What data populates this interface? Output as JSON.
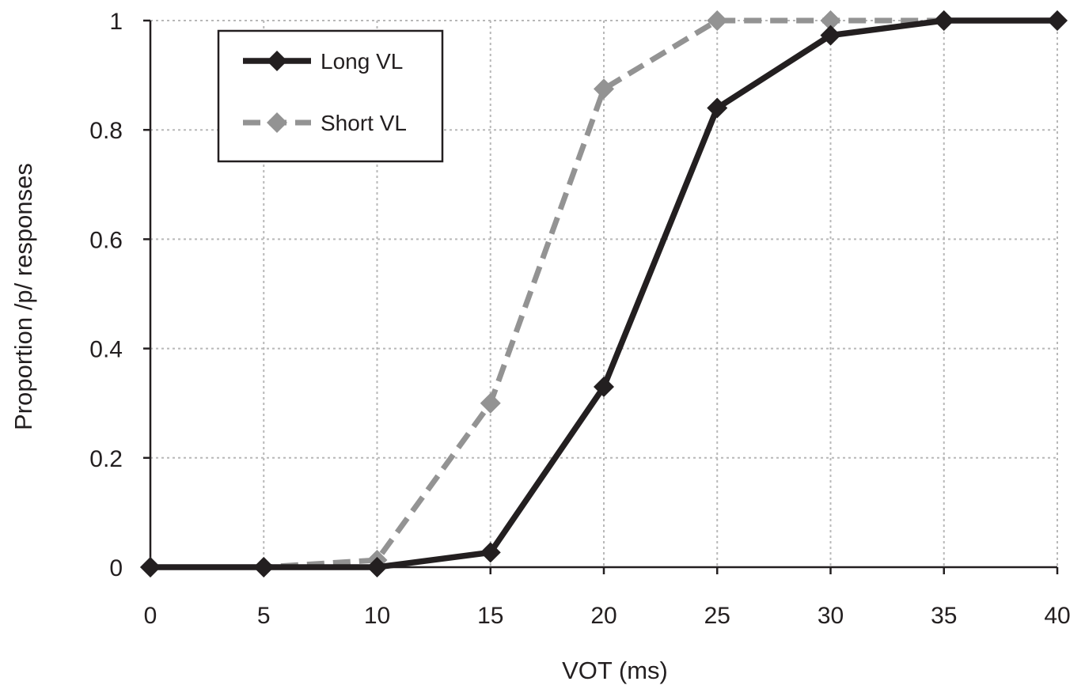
{
  "chart_data": {
    "type": "line",
    "title": "",
    "xlabel": "VOT (ms)",
    "ylabel": "Proportion /p/ responses",
    "xlim": [
      0,
      40
    ],
    "ylim": [
      0,
      1
    ],
    "x_ticks": [
      "0",
      "5",
      "10",
      "15",
      "20",
      "25",
      "30",
      "35",
      "40"
    ],
    "y_ticks": [
      "0",
      "0.2",
      "0.4",
      "0.6",
      "0.8",
      "1"
    ],
    "x_tick_values": [
      0,
      5,
      10,
      15,
      20,
      25,
      30,
      35,
      40
    ],
    "y_tick_values": [
      0,
      0.2,
      0.4,
      0.6,
      0.8,
      1
    ],
    "grid": true,
    "legend_position": "top-left",
    "x": [
      0,
      5,
      10,
      15,
      20,
      25,
      30,
      35,
      40
    ],
    "series": [
      {
        "name": "Long VL",
        "values": [
          0,
          0,
          0,
          0.027,
          0.33,
          0.84,
          0.973,
          1,
          1
        ],
        "color": "#231f20",
        "line_style": "solid",
        "marker": "diamond"
      },
      {
        "name": "Short VL",
        "values": [
          0,
          0,
          0.013,
          0.3,
          0.875,
          1,
          1,
          1,
          1
        ],
        "color": "#939393",
        "line_style": "dashed",
        "marker": "diamond"
      }
    ]
  }
}
